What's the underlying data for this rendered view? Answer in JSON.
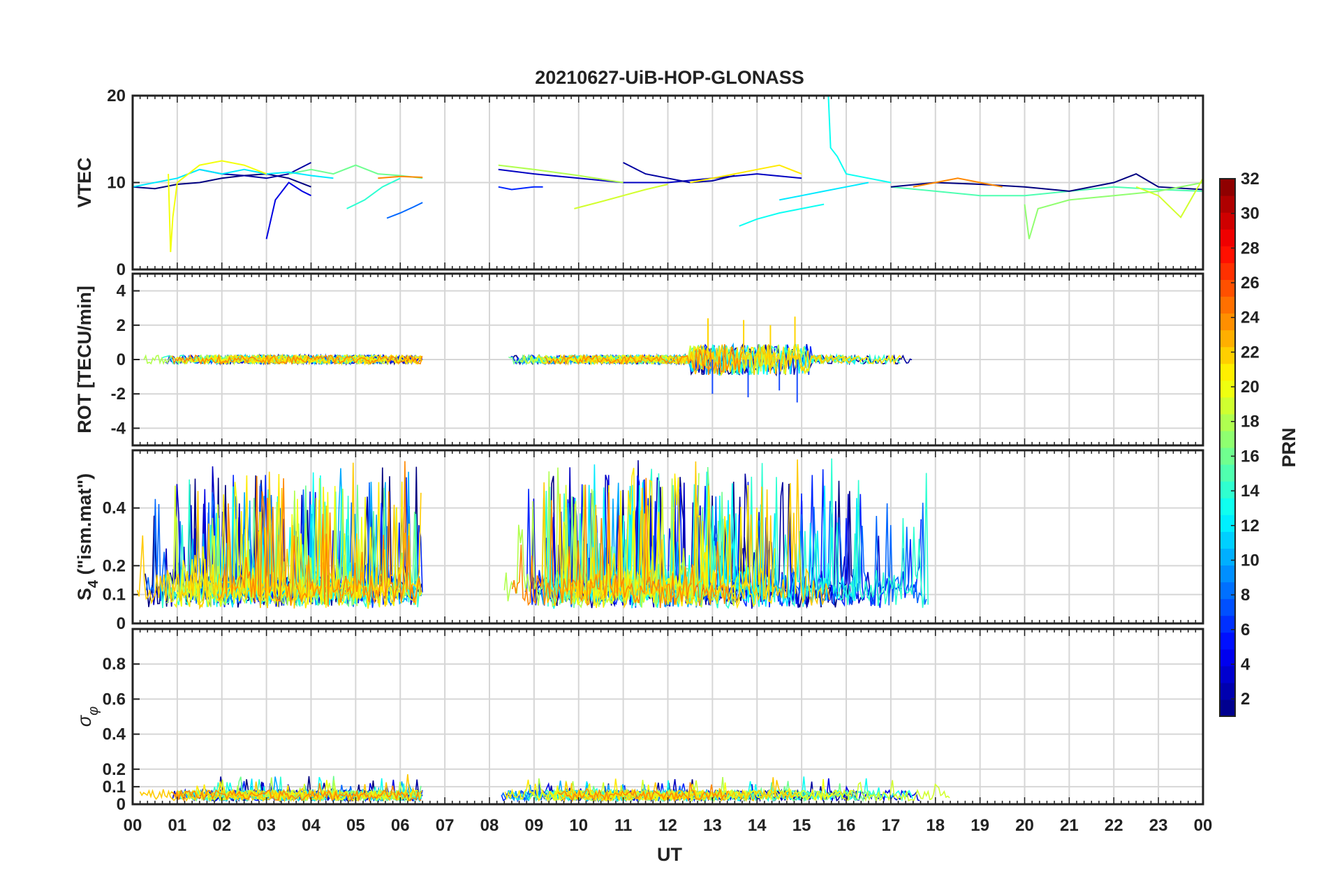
{
  "title": "20210627-UiB-HOP-GLONASS",
  "xlabel": "UT",
  "x_tick_labels": [
    "00",
    "01",
    "02",
    "03",
    "04",
    "05",
    "06",
    "07",
    "08",
    "09",
    "10",
    "11",
    "12",
    "13",
    "14",
    "15",
    "16",
    "17",
    "18",
    "19",
    "20",
    "21",
    "22",
    "23",
    "00"
  ],
  "colorbar": {
    "label": "PRN",
    "colormap": "jet",
    "range": [
      1,
      32
    ],
    "tick_labels": [
      "2",
      "4",
      "6",
      "8",
      "10",
      "12",
      "14",
      "16",
      "18",
      "20",
      "22",
      "24",
      "26",
      "28",
      "30",
      "32"
    ]
  },
  "chart_data": [
    {
      "type": "line",
      "panel": "vtec",
      "ylabel": "VTEC",
      "ylim": [
        0,
        20
      ],
      "y_tick_labels": [
        "0",
        "10",
        "20"
      ],
      "x_range_hours": [
        0,
        24
      ],
      "data_gap_hours": [
        6.5,
        8.15
      ],
      "grid": true,
      "series": [
        {
          "prn": 1,
          "x": [
            0.0,
            0.5,
            1.0,
            1.5,
            2.0,
            2.5,
            3.0,
            3.5,
            4.0
          ],
          "y": [
            9.5,
            9.3,
            9.8,
            10.0,
            10.5,
            10.8,
            11.0,
            10.5,
            9.5
          ]
        },
        {
          "prn": 4,
          "x": [
            3.0,
            3.2,
            3.5,
            3.8,
            4.0
          ],
          "y": [
            3.5,
            8.0,
            10.0,
            9.0,
            8.5
          ]
        },
        {
          "prn": 2,
          "x": [
            1.5,
            2.0,
            2.5,
            3.0,
            3.5,
            4.0
          ],
          "y": [
            11.5,
            11.0,
            10.8,
            10.5,
            11.0,
            12.3
          ]
        },
        {
          "prn": 8,
          "x": [
            5.7,
            6.0,
            6.3,
            6.5
          ],
          "y": [
            5.9,
            6.5,
            7.2,
            7.7
          ]
        },
        {
          "prn": 14,
          "x": [
            4.8,
            5.2,
            5.6,
            6.0
          ],
          "y": [
            7.0,
            8.0,
            9.5,
            10.5
          ]
        },
        {
          "prn": 16,
          "x": [
            3.5,
            4.0,
            4.5,
            5.0,
            5.5,
            6.0,
            6.5
          ],
          "y": [
            11.0,
            11.5,
            11.0,
            12.0,
            11.0,
            10.8,
            10.5
          ]
        },
        {
          "prn": 12,
          "x": [
            0.0,
            0.5,
            1.0,
            1.5,
            2.0,
            2.5,
            3.0,
            3.5,
            4.0,
            4.5
          ],
          "y": [
            9.5,
            10.0,
            10.5,
            11.5,
            11.0,
            11.5,
            11.0,
            11.2,
            10.8,
            10.5
          ]
        },
        {
          "prn": 20,
          "x": [
            0.8,
            0.85,
            0.9,
            1.0,
            1.5,
            2.0,
            2.5,
            3.0
          ],
          "y": [
            11.0,
            2.0,
            6.0,
            10.0,
            12.0,
            12.5,
            12.0,
            11.0
          ]
        },
        {
          "prn": 24,
          "x": [
            5.5,
            6.0,
            6.5
          ],
          "y": [
            10.5,
            10.7,
            10.6
          ]
        },
        {
          "prn": 6,
          "x": [
            8.2,
            8.5,
            9.0,
            9.2
          ],
          "y": [
            9.5,
            9.2,
            9.5,
            9.5
          ]
        },
        {
          "prn": 3,
          "x": [
            8.2,
            9.0,
            10.0,
            11.0,
            12.0,
            13.0,
            14.0,
            15.0
          ],
          "y": [
            11.5,
            11.0,
            10.5,
            10.0,
            10.0,
            10.5,
            11.0,
            10.5
          ]
        },
        {
          "prn": 2,
          "x": [
            11.0,
            11.5,
            12.0,
            12.5,
            13.0,
            13.5
          ],
          "y": [
            12.3,
            11.0,
            10.5,
            10.0,
            10.2,
            10.8
          ]
        },
        {
          "prn": 19,
          "x": [
            9.9,
            10.5,
            11.0,
            11.5,
            12.0
          ],
          "y": [
            7.0,
            7.8,
            8.5,
            9.2,
            9.8
          ]
        },
        {
          "prn": 18,
          "x": [
            8.2,
            9.0,
            10.0,
            11.0
          ],
          "y": [
            12.0,
            11.5,
            10.8,
            10.0
          ]
        },
        {
          "prn": 21,
          "x": [
            12.5,
            13.0,
            13.5,
            14.0,
            14.5,
            15.0
          ],
          "y": [
            10.0,
            10.5,
            11.0,
            11.5,
            12.0,
            11.0
          ]
        },
        {
          "prn": 13,
          "x": [
            13.6,
            14.0,
            14.5,
            15.0,
            15.5
          ],
          "y": [
            5.0,
            5.8,
            6.5,
            7.0,
            7.5
          ]
        },
        {
          "prn": 13,
          "x": [
            15.6,
            15.65,
            15.8,
            16.0,
            16.5,
            17.0
          ],
          "y": [
            20.0,
            14.0,
            13.0,
            11.0,
            10.5,
            10.0
          ]
        },
        {
          "prn": 12,
          "x": [
            14.5,
            15.0,
            15.5,
            16.0,
            16.5
          ],
          "y": [
            8.0,
            8.5,
            9.0,
            9.5,
            10.0
          ]
        },
        {
          "prn": 15,
          "x": [
            17.0,
            18.0,
            19.0,
            20.0,
            21.0,
            22.0,
            23.0,
            24.0
          ],
          "y": [
            9.5,
            9.0,
            8.5,
            8.5,
            9.0,
            9.5,
            9.2,
            9.0
          ]
        },
        {
          "prn": 1,
          "x": [
            17.0,
            18.0,
            19.0,
            20.0,
            21.0,
            22.0,
            22.5,
            23.0,
            24.0
          ],
          "y": [
            9.5,
            10.0,
            9.8,
            9.5,
            9.0,
            10.0,
            11.0,
            9.5,
            9.2
          ]
        },
        {
          "prn": 24,
          "x": [
            17.5,
            18.0,
            18.5,
            19.0,
            19.5
          ],
          "y": [
            9.5,
            10.0,
            10.5,
            10.0,
            9.5
          ]
        },
        {
          "prn": 17,
          "x": [
            20.0,
            20.1,
            20.3,
            21.0,
            22.0,
            23.0,
            24.0
          ],
          "y": [
            7.5,
            3.5,
            7.0,
            8.0,
            8.5,
            9.0,
            10.0
          ]
        },
        {
          "prn": 19,
          "x": [
            22.5,
            23.0,
            23.5,
            24.0
          ],
          "y": [
            9.5,
            8.5,
            6.0,
            10.5
          ]
        }
      ]
    },
    {
      "type": "line",
      "panel": "rot",
      "ylabel": "ROT [TECU/min]",
      "ylim": [
        -5,
        5
      ],
      "y_tick_labels": [
        "-4",
        "-2",
        "0",
        "2",
        "4"
      ],
      "x_range_hours": [
        0,
        24
      ],
      "data_gap_hours": [
        6.5,
        8.15
      ],
      "grid": true,
      "note_values": "noisy scatter around 0 TECU/min; spikes to about +/-2.5 between 12.5 and 15 UT",
      "spikes": [
        {
          "x": 12.9,
          "y": 2.4
        },
        {
          "x": 13.0,
          "y": -2.0
        },
        {
          "x": 13.7,
          "y": 2.3
        },
        {
          "x": 13.8,
          "y": -2.2
        },
        {
          "x": 14.3,
          "y": 2.0
        },
        {
          "x": 14.5,
          "y": -1.8
        },
        {
          "x": 14.85,
          "y": 2.5
        },
        {
          "x": 14.9,
          "y": -2.5
        }
      ]
    },
    {
      "type": "line",
      "panel": "s4",
      "ylabel": "S4 (\"ism.mat\")",
      "ylabel_main": "S",
      "ylabel_sub": "4",
      "ylabel_rest": " (\"ism.mat\")",
      "ylim": [
        0,
        0.6
      ],
      "y_tick_labels": [
        "0",
        "0.1",
        "0.2",
        "0.4"
      ],
      "x_range_hours": [
        0,
        24
      ],
      "data_gap_hours": [
        6.5,
        8.15
      ],
      "grid": true,
      "note_values": "baseline about 0.05-0.1 with frequent spikes up to 0.6"
    },
    {
      "type": "line",
      "panel": "sigma_phi",
      "ylabel": "σ φ",
      "ylabel_main": "σ",
      "ylabel_sub": "φ",
      "ylim": [
        0,
        1
      ],
      "y_tick_labels": [
        "0",
        "0.1",
        "0.2",
        "0.4",
        "0.6",
        "0.8"
      ],
      "x_range_hours": [
        0,
        24
      ],
      "data_gap_hours": [
        6.5,
        8.15
      ],
      "grid": true,
      "note_values": "values mostly 0-0.12 with occasional peaks near 0.2"
    }
  ]
}
